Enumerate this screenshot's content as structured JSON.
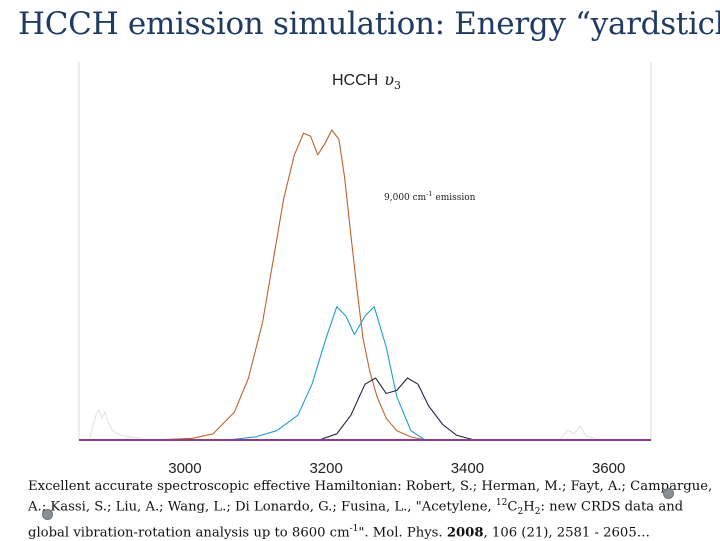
{
  "slide": {
    "title": "HCCH emission simulation: Energy “yardstick”"
  },
  "chart_data": {
    "type": "line",
    "title": "HCCH",
    "title_symbol": "υ",
    "title_subscript": "3",
    "annotation": {
      "text_main": "9,000 cm",
      "text_sup": "-1",
      "text_tail": " emission"
    },
    "xlim": [
      2850,
      3660
    ],
    "ylim": [
      0,
      1.0
    ],
    "x_ticks": [
      {
        "value": 3000,
        "label": "3000"
      },
      {
        "value": 3200,
        "label": "3200"
      },
      {
        "value": 3400,
        "label": "3400"
      },
      {
        "value": 3600,
        "label": "3600"
      }
    ],
    "grid": false,
    "series": [
      {
        "color": "#c0622a",
        "x": [
          2850,
          2950,
          3010,
          3040,
          3070,
          3090,
          3110,
          3125,
          3140,
          3155,
          3168,
          3178,
          3188,
          3198,
          3208,
          3218,
          3226,
          3234,
          3244,
          3252,
          3262,
          3272,
          3285,
          3300,
          3320,
          3340,
          3660
        ],
        "y": [
          0.0,
          0.0,
          0.005,
          0.02,
          0.09,
          0.2,
          0.38,
          0.58,
          0.78,
          0.92,
          0.99,
          0.98,
          0.92,
          0.955,
          1.0,
          0.97,
          0.85,
          0.68,
          0.48,
          0.33,
          0.22,
          0.14,
          0.07,
          0.03,
          0.01,
          0.0,
          0.0
        ]
      },
      {
        "color": "#1e9bd7",
        "x": [
          2850,
          3060,
          3100,
          3130,
          3160,
          3180,
          3200,
          3215,
          3228,
          3240,
          3255,
          3268,
          3285,
          3300,
          3320,
          3340,
          3660
        ],
        "y": [
          0.0,
          0.0,
          0.01,
          0.03,
          0.08,
          0.18,
          0.33,
          0.43,
          0.4,
          0.34,
          0.4,
          0.43,
          0.3,
          0.14,
          0.03,
          0.0,
          0.0
        ]
      },
      {
        "color": "#222244",
        "x": [
          2850,
          3190,
          3215,
          3235,
          3255,
          3270,
          3285,
          3300,
          3315,
          3330,
          3345,
          3365,
          3385,
          3410,
          3660
        ],
        "y": [
          0.0,
          0.0,
          0.02,
          0.08,
          0.18,
          0.2,
          0.15,
          0.16,
          0.2,
          0.18,
          0.11,
          0.05,
          0.015,
          0.0,
          0.0
        ]
      },
      {
        "color": "#8a3c8a",
        "x": [
          2850,
          3660
        ],
        "y": [
          0.0,
          0.0
        ]
      }
    ]
  },
  "caption": {
    "p1": "Excellent accurate spectroscopic effective Hamiltonian: Robert, S.; Herman, M.; Fayt, A.; Campargue, A.; Kassi, S.; Liu, A.; Wang, L.; Di Lonardo, G.; Fusina, L., \"Acetylene, ",
    "sup1": "12",
    "p2": "C",
    "sub1": "2",
    "p3": "H",
    "sub2": "2",
    "p4": ": new CRDS data and global vibration-rotation analysis up to 8600 cm",
    "sup2": "-1",
    "p5": "\". Mol. Phys. ",
    "year": "2008",
    "p6": ", 106 (21), 2581 - 2605…"
  }
}
